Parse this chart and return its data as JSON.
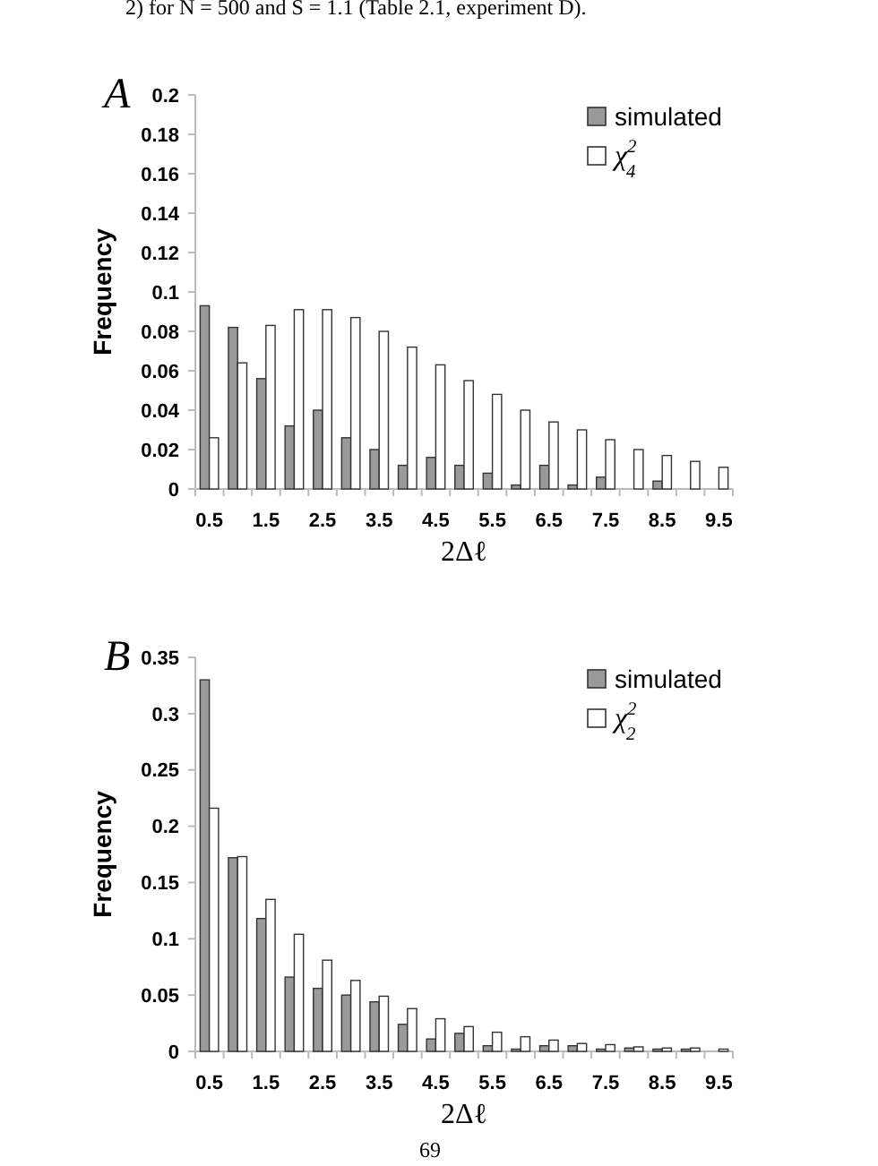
{
  "chart_data": [
    {
      "type": "bar",
      "title": "A",
      "xlabel": "2Δℓ",
      "ylabel": "Frequency",
      "annotations": [
        "2) for N = 500 and S = 1.1 (Table 2.1, experiment D)."
      ],
      "categories": [
        "0.5",
        null,
        "1.5",
        null,
        "2.5",
        null,
        "3.5",
        null,
        "4.5",
        null,
        "5.5",
        null,
        "6.5",
        null,
        "7.5",
        null,
        "8.5",
        null,
        "9.5"
      ],
      "series": [
        {
          "name": "simulated",
          "color": "#9a9a9a",
          "values": [
            0.093,
            0.082,
            0.056,
            0.032,
            0.04,
            0.026,
            0.02,
            0.012,
            0.016,
            0.012,
            0.008,
            0.002,
            0.012,
            0.002,
            0.006,
            0,
            0.004,
            0,
            0
          ]
        },
        {
          "name": "χ$^{2}$$_{4}$",
          "color": "#ffffff",
          "values": [
            0.026,
            0.064,
            0.083,
            0.091,
            0.091,
            0.087,
            0.08,
            0.072,
            0.063,
            0.055,
            0.048,
            0.04,
            0.034,
            0.03,
            0.025,
            0.02,
            0.017,
            0.014,
            0.011
          ]
        }
      ],
      "ylim": [
        0,
        0.2
      ],
      "yticks": [
        0,
        0.02,
        0.04,
        0.06,
        0.08,
        0.1,
        0.12,
        0.14,
        0.16,
        0.18,
        0.2
      ],
      "legend": "top right"
    },
    {
      "type": "bar",
      "title": "B",
      "xlabel": "2Δℓ",
      "ylabel": "Frequency",
      "annotations": [
        "69"
      ],
      "categories": [
        "0.5",
        null,
        "1.5",
        null,
        "2.5",
        null,
        "3.5",
        null,
        "4.5",
        null,
        "5.5",
        null,
        "6.5",
        null,
        "7.5",
        null,
        "8.5",
        null,
        "9.5"
      ],
      "series": [
        {
          "name": "simulated",
          "color": "#9a9a9a",
          "values": [
            0.33,
            0.172,
            0.118,
            0.066,
            0.056,
            0.05,
            0.044,
            0.024,
            0.011,
            0.016,
            0.005,
            0.002,
            0.005,
            0.005,
            0.002,
            0.003,
            0.002,
            0.002,
            0
          ]
        },
        {
          "name": "χ$^{2}$$_{2}$",
          "color": "#ffffff",
          "values": [
            0.216,
            0.173,
            0.135,
            0.104,
            0.081,
            0.063,
            0.049,
            0.038,
            0.029,
            0.022,
            0.017,
            0.013,
            0.01,
            0.007,
            0.006,
            0.004,
            0.003,
            0.003,
            0.002
          ]
        }
      ],
      "ylim": [
        0,
        0.35
      ],
      "yticks": [
        0,
        0.05,
        0.1,
        0.15,
        0.2,
        0.25,
        0.3,
        0.35
      ],
      "legend": "top right"
    }
  ]
}
